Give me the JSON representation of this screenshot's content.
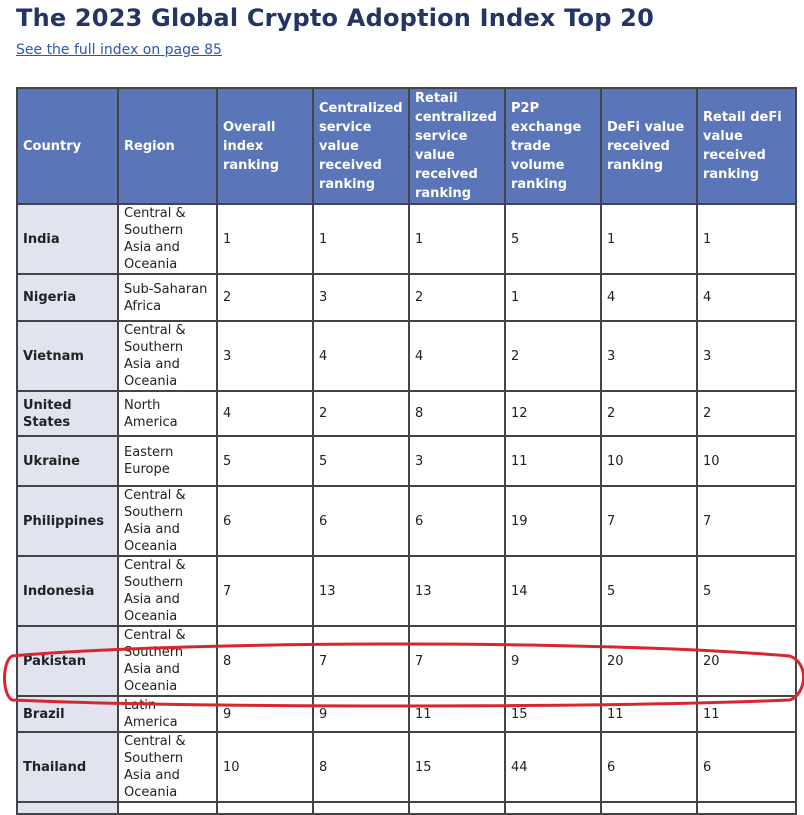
{
  "title": "The 2023 Global Crypto Adoption Index Top 20",
  "link": "See the full index on page 85",
  "table": {
    "headers": [
      "Country",
      "Region",
      "Overall index ranking",
      "Centralized service value received ranking",
      "Retail centralized service value received ranking",
      "P2P exchange trade volume ranking",
      "DeFi value received ranking",
      "Retail deFi value received ranking"
    ],
    "rows": [
      [
        "India",
        "Central & Southern Asia and Oceania",
        "1",
        "1",
        "1",
        "5",
        "1",
        "1"
      ],
      [
        "Nigeria",
        "Sub-Saharan Africa",
        "2",
        "3",
        "2",
        "1",
        "4",
        "4"
      ],
      [
        "Vietnam",
        "Central & Southern Asia and Oceania",
        "3",
        "4",
        "4",
        "2",
        "3",
        "3"
      ],
      [
        "United States",
        "North America",
        "4",
        "2",
        "8",
        "12",
        "2",
        "2"
      ],
      [
        "Ukraine",
        "Eastern Europe",
        "5",
        "5",
        "3",
        "11",
        "10",
        "10"
      ],
      [
        "Philippines",
        "Central & Southern Asia and Oceania",
        "6",
        "6",
        "6",
        "19",
        "7",
        "7"
      ],
      [
        "Indonesia",
        "Central & Southern Asia and Oceania",
        "7",
        "13",
        "13",
        "14",
        "5",
        "5"
      ],
      [
        "Pakistan",
        "Central & Southern Asia and Oceania",
        "8",
        "7",
        "7",
        "9",
        "20",
        "20"
      ],
      [
        "Brazil",
        "Latin America",
        "9",
        "9",
        "11",
        "15",
        "11",
        "11"
      ],
      [
        "Thailand",
        "Central & Southern Asia and Oceania",
        "10",
        "8",
        "15",
        "44",
        "6",
        "6"
      ]
    ]
  },
  "highlight": {
    "row": "Brazil",
    "color": "#d9262e"
  }
}
